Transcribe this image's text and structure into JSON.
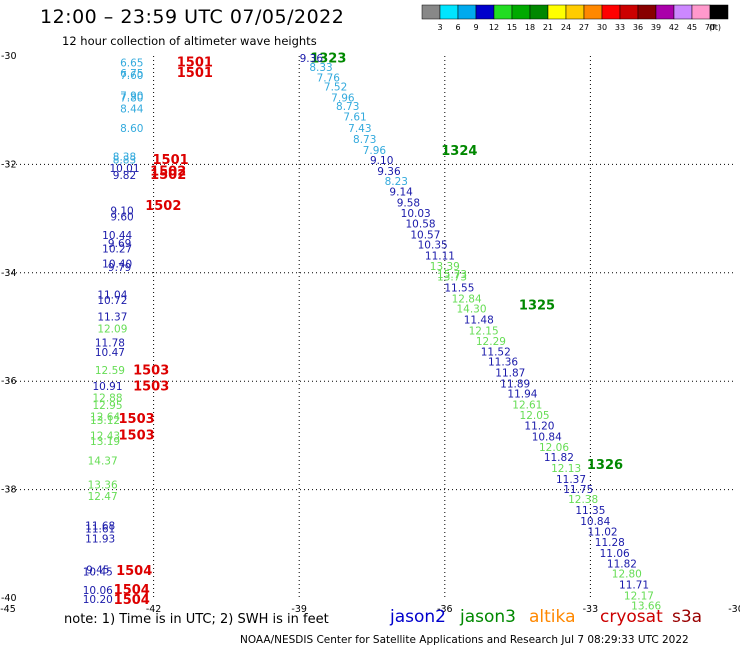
{
  "title": "12:00 – 23:59 UTC 07/05/2022",
  "subtitle": "12 hour collection of altimeter wave heights",
  "note": "note:  1) Time is in UTC;  2) SWH is in feet",
  "credit": "NOAA/NESDIS Center for Satellite Applications and Research     Jul  7 08:29:33 UTC 2022",
  "satellites": [
    {
      "name": "jason2",
      "color": "#0000cc"
    },
    {
      "name": "jason3",
      "color": "#008800"
    },
    {
      "name": "altika",
      "color": "#ff8800"
    },
    {
      "name": "cryosat",
      "color": "#cc0000"
    },
    {
      "name": "s3a",
      "color": "#990000"
    }
  ],
  "colorbar": {
    "unit": "(ft)",
    "labels": [
      "3",
      "6",
      "9",
      "12",
      "15",
      "18",
      "21",
      "24",
      "27",
      "30",
      "33",
      "36",
      "39",
      "42",
      "45",
      "70"
    ],
    "colors": [
      "#888888",
      "#00e5ff",
      "#00aaee",
      "#0000cc",
      "#22dd22",
      "#00aa00",
      "#008800",
      "#ffff00",
      "#ffcc00",
      "#ff8800",
      "#ff0000",
      "#cc0000",
      "#880000",
      "#aa00aa",
      "#cc88ff",
      "#ff99cc",
      "#000000"
    ]
  },
  "chart_data": {
    "type": "scatter",
    "xlim": [
      -45,
      -30
    ],
    "ylim": [
      -40,
      -30
    ],
    "x_ticks": [
      "-45",
      "-42",
      "-39",
      "-36",
      "-33",
      "-30"
    ],
    "y_ticks": [
      "-30",
      "-32",
      "-34",
      "-36",
      "-38",
      "-40"
    ],
    "grid": true,
    "colors": {
      "cyan": "#33aadd",
      "blue": "#1a1aaa",
      "lightgreen": "#66dd55",
      "red": "#dd0000",
      "green": "#008800"
    },
    "points": [
      {
        "t": "6.65",
        "lon": -42.45,
        "lat": -30.12,
        "c": "cyan"
      },
      {
        "t": "6.75",
        "lon": -42.45,
        "lat": -30.31,
        "c": "cyan"
      },
      {
        "t": "7.60",
        "lon": -42.45,
        "lat": -30.35,
        "c": "cyan"
      },
      {
        "t": "7.90",
        "lon": -42.45,
        "lat": -30.73,
        "c": "cyan"
      },
      {
        "t": "7.80",
        "lon": -42.45,
        "lat": -30.77,
        "c": "cyan"
      },
      {
        "t": "8.44",
        "lon": -42.45,
        "lat": -30.97,
        "c": "cyan"
      },
      {
        "t": "8.60",
        "lon": -42.45,
        "lat": -31.33,
        "c": "cyan"
      },
      {
        "t": "8.38",
        "lon": -42.6,
        "lat": -31.85,
        "c": "cyan"
      },
      {
        "t": "8.83",
        "lon": -42.6,
        "lat": -31.91,
        "c": "cyan"
      },
      {
        "t": "10.01",
        "lon": -42.6,
        "lat": -32.07,
        "c": "blue"
      },
      {
        "t": "9.82",
        "lon": -42.6,
        "lat": -32.2,
        "c": "blue"
      },
      {
        "t": "9.10",
        "lon": -42.65,
        "lat": -32.85,
        "c": "blue"
      },
      {
        "t": "9.60",
        "lon": -42.65,
        "lat": -32.96,
        "c": "blue"
      },
      {
        "t": "10.44",
        "lon": -42.75,
        "lat": -33.3,
        "c": "blue"
      },
      {
        "t": "9.69",
        "lon": -42.7,
        "lat": -33.45,
        "c": "blue"
      },
      {
        "t": "10.27",
        "lon": -42.75,
        "lat": -33.55,
        "c": "blue"
      },
      {
        "t": "10.40",
        "lon": -42.75,
        "lat": -33.83,
        "c": "blue"
      },
      {
        "t": "9.79",
        "lon": -42.7,
        "lat": -33.89,
        "c": "blue"
      },
      {
        "t": "11.04",
        "lon": -42.85,
        "lat": -34.4,
        "c": "blue"
      },
      {
        "t": "10.72",
        "lon": -42.85,
        "lat": -34.5,
        "c": "blue"
      },
      {
        "t": "11.37",
        "lon": -42.85,
        "lat": -34.81,
        "c": "blue"
      },
      {
        "t": "12.09",
        "lon": -42.85,
        "lat": -35.03,
        "c": "lightgreen"
      },
      {
        "t": "11.78",
        "lon": -42.9,
        "lat": -35.29,
        "c": "blue"
      },
      {
        "t": "10.47",
        "lon": -42.9,
        "lat": -35.46,
        "c": "blue"
      },
      {
        "t": "12.59",
        "lon": -42.9,
        "lat": -35.79,
        "c": "lightgreen"
      },
      {
        "t": "10.91",
        "lon": -42.95,
        "lat": -36.09,
        "c": "blue"
      },
      {
        "t": "12.88",
        "lon": -42.95,
        "lat": -36.3,
        "c": "lightgreen"
      },
      {
        "t": "12.95",
        "lon": -42.95,
        "lat": -36.44,
        "c": "lightgreen"
      },
      {
        "t": "12.64",
        "lon": -43.0,
        "lat": -36.65,
        "c": "lightgreen"
      },
      {
        "t": "13.12",
        "lon": -43.0,
        "lat": -36.72,
        "c": "lightgreen"
      },
      {
        "t": "12.43",
        "lon": -43.0,
        "lat": -37.0,
        "c": "lightgreen"
      },
      {
        "t": "13.19",
        "lon": -43.0,
        "lat": -37.1,
        "c": "lightgreen"
      },
      {
        "t": "14.37",
        "lon": -43.05,
        "lat": -37.46,
        "c": "lightgreen"
      },
      {
        "t": "13.36",
        "lon": -43.05,
        "lat": -37.91,
        "c": "lightgreen"
      },
      {
        "t": "12.47",
        "lon": -43.05,
        "lat": -38.12,
        "c": "lightgreen"
      },
      {
        "t": "11.68",
        "lon": -43.1,
        "lat": -38.66,
        "c": "blue"
      },
      {
        "t": "11.61",
        "lon": -43.1,
        "lat": -38.72,
        "c": "blue"
      },
      {
        "t": "11.93",
        "lon": -43.1,
        "lat": -38.9,
        "c": "blue"
      },
      {
        "t": "9.45",
        "lon": -43.15,
        "lat": -39.47,
        "c": "blue"
      },
      {
        "t": "10.45",
        "lon": -43.15,
        "lat": -39.51,
        "c": "blue"
      },
      {
        "t": "10.06",
        "lon": -43.15,
        "lat": -39.85,
        "c": "blue"
      },
      {
        "t": "10.20",
        "lon": -43.15,
        "lat": -40.02,
        "c": "blue"
      },
      {
        "t": "1501",
        "lon": -41.15,
        "lat": -30.12,
        "c": "red",
        "big": true
      },
      {
        "t": "1501",
        "lon": -41.15,
        "lat": -30.31,
        "c": "red",
        "big": true
      },
      {
        "t": "1501",
        "lon": -41.65,
        "lat": -31.92,
        "c": "red",
        "big": true
      },
      {
        "t": "1502",
        "lon": -41.7,
        "lat": -32.13,
        "c": "red",
        "big": true
      },
      {
        "t": "1502",
        "lon": -41.7,
        "lat": -32.2,
        "c": "red",
        "big": true
      },
      {
        "t": "1502",
        "lon": -41.8,
        "lat": -32.77,
        "c": "red",
        "big": true
      },
      {
        "t": "1503",
        "lon": -42.05,
        "lat": -35.8,
        "c": "red",
        "big": true
      },
      {
        "t": "1503",
        "lon": -42.05,
        "lat": -36.1,
        "c": "red",
        "big": true
      },
      {
        "t": "1503",
        "lon": -42.35,
        "lat": -36.7,
        "c": "red",
        "big": true
      },
      {
        "t": "1503",
        "lon": -42.35,
        "lat": -37.0,
        "c": "red",
        "big": true
      },
      {
        "t": "1504",
        "lon": -42.4,
        "lat": -39.5,
        "c": "red",
        "big": true
      },
      {
        "t": "1504",
        "lon": -42.45,
        "lat": -39.85,
        "c": "red",
        "big": true
      },
      {
        "t": "1504",
        "lon": -42.45,
        "lat": -40.04,
        "c": "red",
        "big": true
      },
      {
        "t": "1323",
        "lon": -38.4,
        "lat": -30.05,
        "c": "green",
        "big": true
      },
      {
        "t": "1324",
        "lon": -35.7,
        "lat": -31.75,
        "c": "green",
        "big": true
      },
      {
        "t": "1325",
        "lon": -34.1,
        "lat": -34.6,
        "c": "green",
        "big": true
      },
      {
        "t": "1326",
        "lon": -32.7,
        "lat": -37.55,
        "c": "green",
        "big": true
      },
      {
        "t": "9.36",
        "lon": -38.75,
        "lat": -30.04,
        "c": "blue"
      },
      {
        "t": "8.33",
        "lon": -38.55,
        "lat": -30.2,
        "c": "cyan"
      },
      {
        "t": "7.76",
        "lon": -38.4,
        "lat": -30.4,
        "c": "cyan"
      },
      {
        "t": "7.52",
        "lon": -38.25,
        "lat": -30.56,
        "c": "cyan"
      },
      {
        "t": "7.96",
        "lon": -38.1,
        "lat": -30.77,
        "c": "cyan"
      },
      {
        "t": "8.73",
        "lon": -38.0,
        "lat": -30.92,
        "c": "cyan"
      },
      {
        "t": "7.61",
        "lon": -37.85,
        "lat": -31.12,
        "c": "cyan"
      },
      {
        "t": "7.43",
        "lon": -37.75,
        "lat": -31.33,
        "c": "cyan"
      },
      {
        "t": "8.73",
        "lon": -37.65,
        "lat": -31.53,
        "c": "cyan"
      },
      {
        "t": "7.96",
        "lon": -37.45,
        "lat": -31.73,
        "c": "cyan"
      },
      {
        "t": "9.10",
        "lon": -37.3,
        "lat": -31.92,
        "c": "blue"
      },
      {
        "t": "9.36",
        "lon": -37.15,
        "lat": -32.12,
        "c": "blue"
      },
      {
        "t": "8.23",
        "lon": -37.0,
        "lat": -32.31,
        "c": "cyan"
      },
      {
        "t": "9.14",
        "lon": -36.9,
        "lat": -32.5,
        "c": "blue"
      },
      {
        "t": "9.58",
        "lon": -36.75,
        "lat": -32.7,
        "c": "blue"
      },
      {
        "t": "10.03",
        "lon": -36.6,
        "lat": -32.9,
        "c": "blue"
      },
      {
        "t": "10.58",
        "lon": -36.5,
        "lat": -33.09,
        "c": "blue"
      },
      {
        "t": "10.57",
        "lon": -36.4,
        "lat": -33.29,
        "c": "blue"
      },
      {
        "t": "10.35",
        "lon": -36.25,
        "lat": -33.48,
        "c": "blue"
      },
      {
        "t": "11.11",
        "lon": -36.1,
        "lat": -33.68,
        "c": "blue"
      },
      {
        "t": "13.39",
        "lon": -36.0,
        "lat": -33.87,
        "c": "lightgreen"
      },
      {
        "t": "15.73",
        "lon": -35.85,
        "lat": -34.02,
        "c": "lightgreen"
      },
      {
        "t": "13.73",
        "lon": -35.85,
        "lat": -34.07,
        "c": "lightgreen"
      },
      {
        "t": "11.55",
        "lon": -35.7,
        "lat": -34.27,
        "c": "blue"
      },
      {
        "t": "12.84",
        "lon": -35.55,
        "lat": -34.47,
        "c": "lightgreen"
      },
      {
        "t": "14.30",
        "lon": -35.45,
        "lat": -34.66,
        "c": "lightgreen"
      },
      {
        "t": "11.48",
        "lon": -35.3,
        "lat": -34.86,
        "c": "blue"
      },
      {
        "t": "12.15",
        "lon": -35.2,
        "lat": -35.06,
        "c": "lightgreen"
      },
      {
        "t": "12.29",
        "lon": -35.05,
        "lat": -35.26,
        "c": "lightgreen"
      },
      {
        "t": "11.52",
        "lon": -34.95,
        "lat": -35.45,
        "c": "blue"
      },
      {
        "t": "11.36",
        "lon": -34.8,
        "lat": -35.64,
        "c": "blue"
      },
      {
        "t": "11.87",
        "lon": -34.65,
        "lat": -35.84,
        "c": "blue"
      },
      {
        "t": "11.89",
        "lon": -34.55,
        "lat": -36.04,
        "c": "blue"
      },
      {
        "t": "11.94",
        "lon": -34.4,
        "lat": -36.23,
        "c": "blue"
      },
      {
        "t": "12.61",
        "lon": -34.3,
        "lat": -36.43,
        "c": "lightgreen"
      },
      {
        "t": "12.05",
        "lon": -34.15,
        "lat": -36.62,
        "c": "lightgreen"
      },
      {
        "t": "11.20",
        "lon": -34.05,
        "lat": -36.82,
        "c": "blue"
      },
      {
        "t": "10.84",
        "lon": -33.9,
        "lat": -37.02,
        "c": "blue"
      },
      {
        "t": "12.06",
        "lon": -33.75,
        "lat": -37.21,
        "c": "lightgreen"
      },
      {
        "t": "11.82",
        "lon": -33.65,
        "lat": -37.4,
        "c": "blue"
      },
      {
        "t": "12.13",
        "lon": -33.5,
        "lat": -37.6,
        "c": "lightgreen"
      },
      {
        "t": "11.37",
        "lon": -33.4,
        "lat": -37.8,
        "c": "blue"
      },
      {
        "t": "11.75",
        "lon": -33.25,
        "lat": -37.99,
        "c": "blue"
      },
      {
        "t": "12.38",
        "lon": -33.15,
        "lat": -38.17,
        "c": "lightgreen"
      },
      {
        "t": "11.35",
        "lon": -33.0,
        "lat": -38.38,
        "c": "blue"
      },
      {
        "t": "10.84",
        "lon": -32.9,
        "lat": -38.58,
        "c": "blue"
      },
      {
        "t": "11.02",
        "lon": -32.75,
        "lat": -38.77,
        "c": "blue"
      },
      {
        "t": "11.28",
        "lon": -32.6,
        "lat": -38.97,
        "c": "blue"
      },
      {
        "t": "11.06",
        "lon": -32.5,
        "lat": -39.17,
        "c": "blue"
      },
      {
        "t": "11.82",
        "lon": -32.35,
        "lat": -39.36,
        "c": "blue"
      },
      {
        "t": "12.80",
        "lon": -32.25,
        "lat": -39.55,
        "c": "lightgreen"
      },
      {
        "t": "11.71",
        "lon": -32.1,
        "lat": -39.75,
        "c": "blue"
      },
      {
        "t": "12.17",
        "lon": -32.0,
        "lat": -39.95,
        "c": "lightgreen"
      },
      {
        "t": "13.66",
        "lon": -31.85,
        "lat": -40.14,
        "c": "lightgreen"
      }
    ]
  }
}
